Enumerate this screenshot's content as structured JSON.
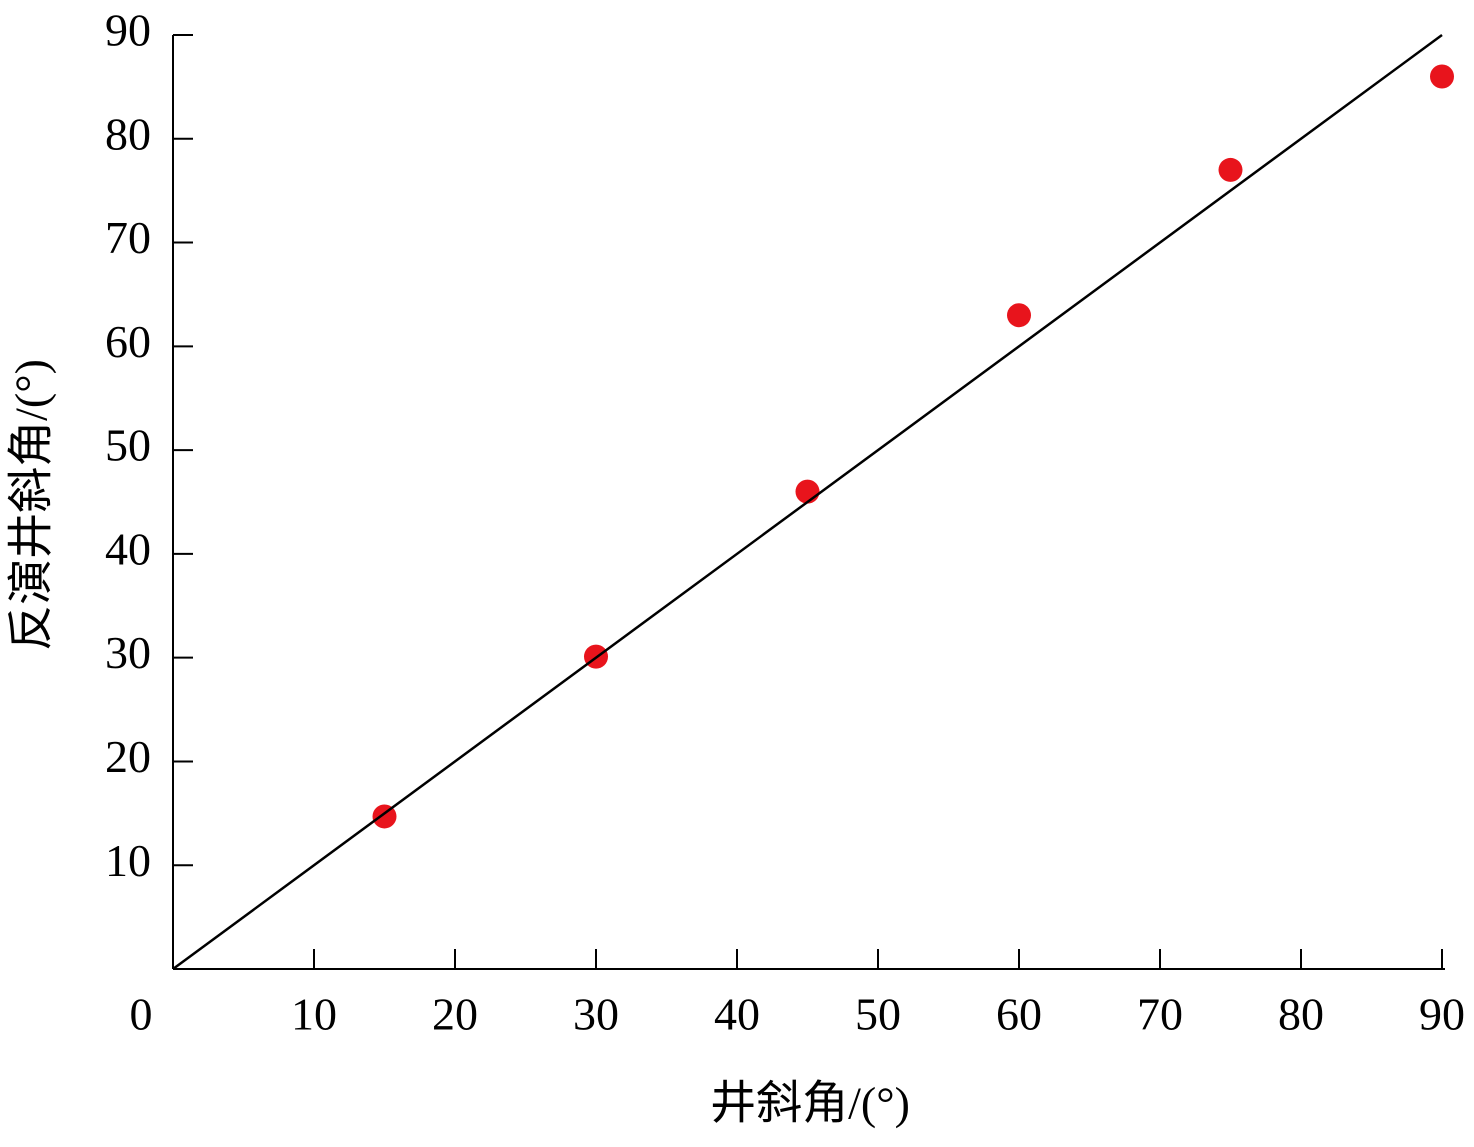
{
  "chart_data": {
    "type": "scatter",
    "x_label": "井斜角/(°)",
    "y_label": "反演井斜角/(°)",
    "xlim": [
      0,
      90
    ],
    "ylim": [
      0,
      90
    ],
    "xticks": [
      0,
      10,
      20,
      30,
      40,
      50,
      60,
      70,
      80,
      90
    ],
    "yticks": [
      10,
      20,
      30,
      40,
      50,
      60,
      70,
      80,
      90
    ],
    "series": [
      {
        "type": "scatter",
        "color": "#e8141c",
        "x": [
          15,
          30,
          45,
          60,
          75,
          90
        ],
        "values": [
          14.7,
          30.1,
          46,
          63,
          77,
          86
        ]
      },
      {
        "type": "line",
        "color": "#000000",
        "x": [
          0,
          90
        ],
        "values": [
          0,
          90
        ]
      }
    ]
  }
}
